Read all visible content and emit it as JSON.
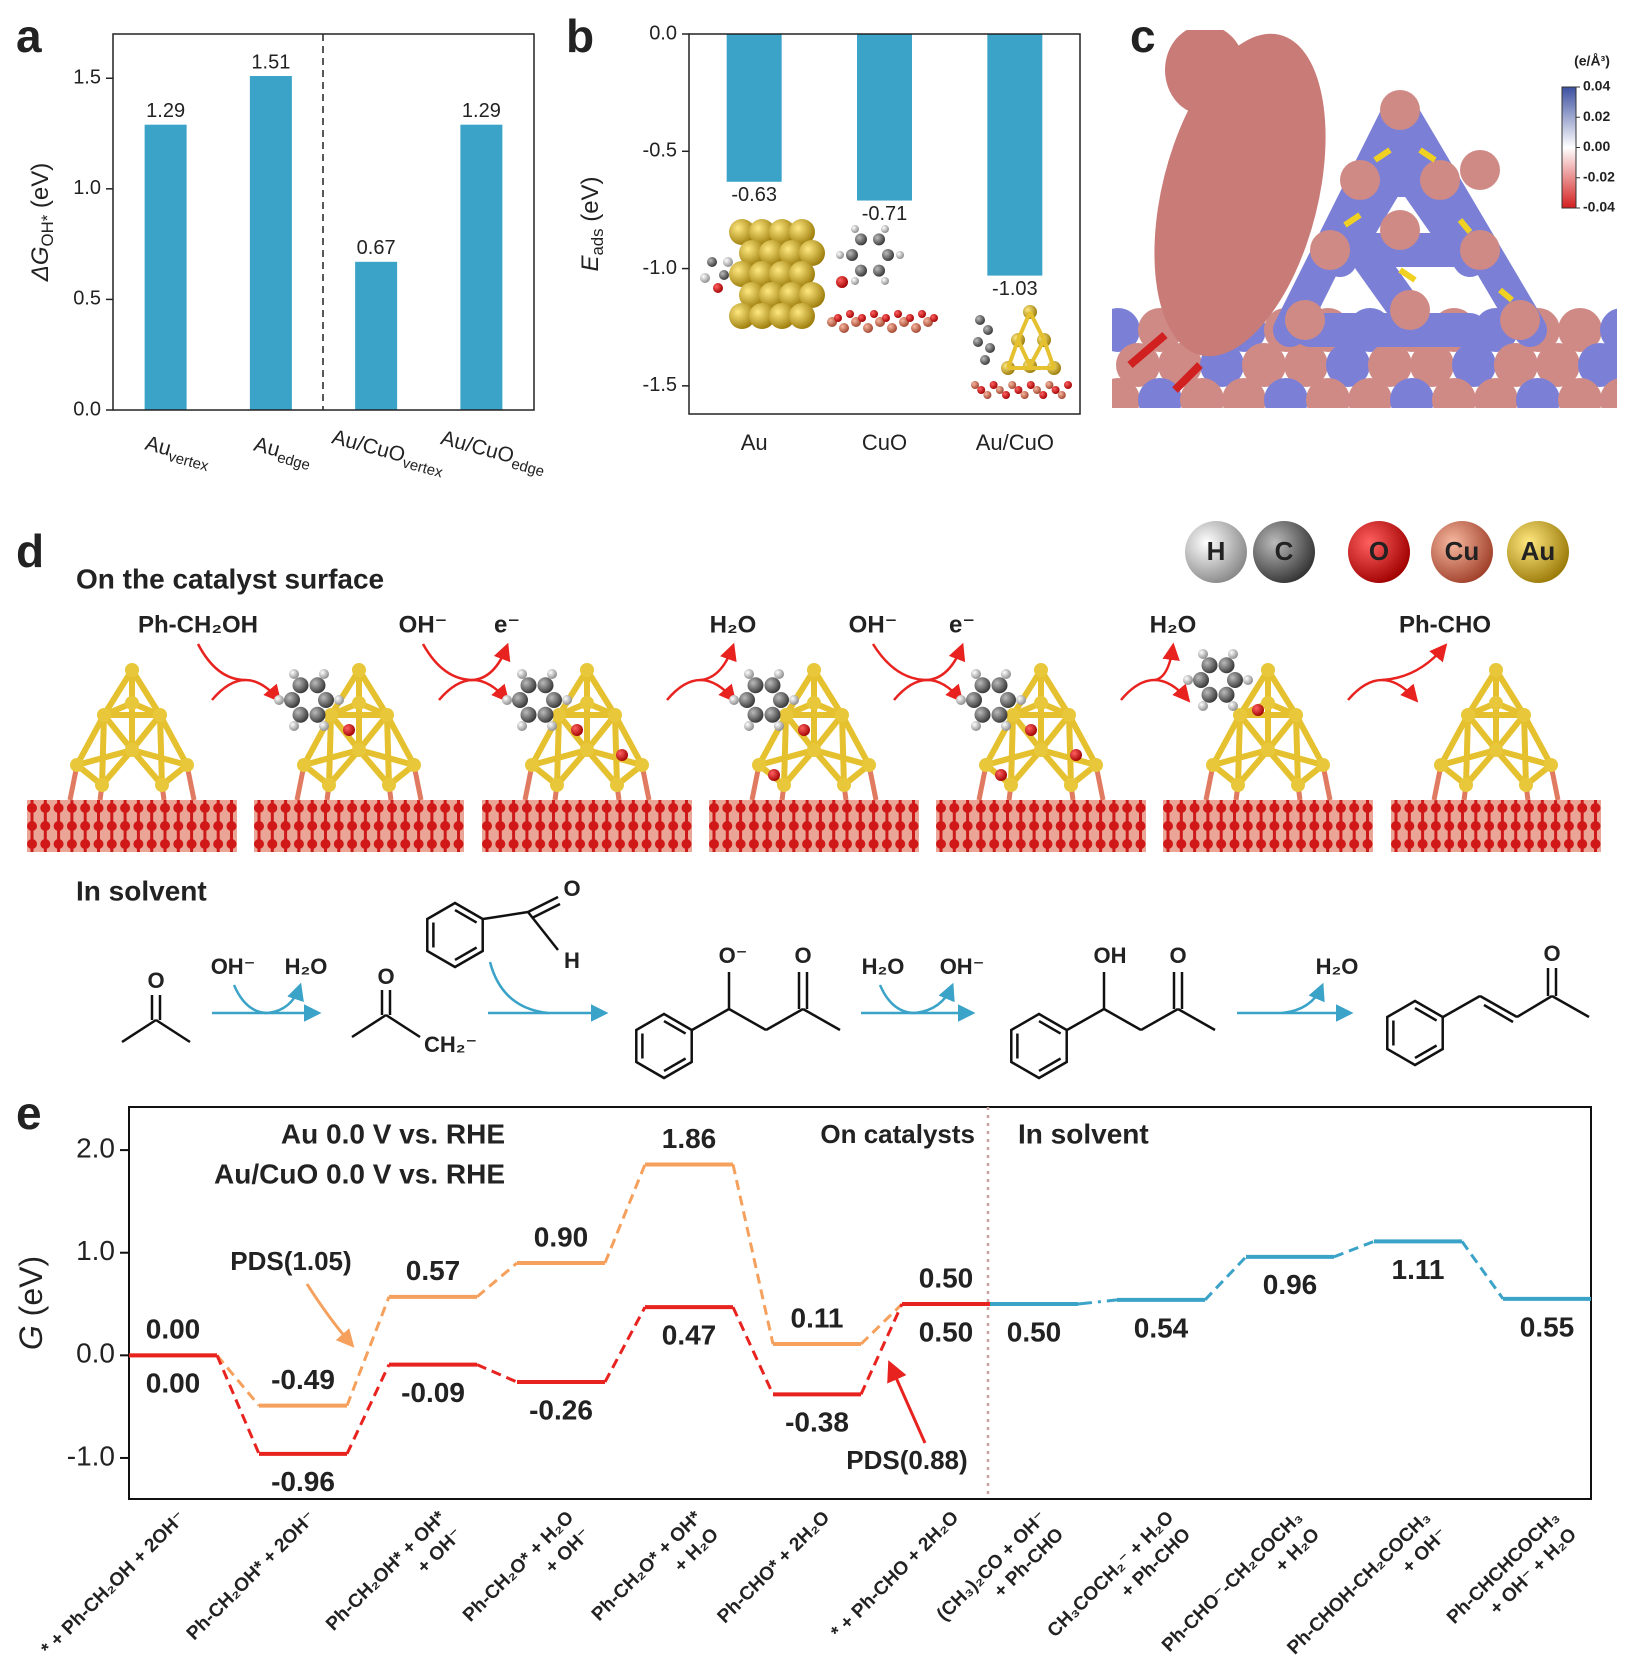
{
  "chart_data": [
    {
      "label": "a",
      "type": "bar",
      "ylabel": [
        "ΔG",
        "OH*",
        " (eV)"
      ],
      "categories": [
        [
          "Au",
          "vertex"
        ],
        [
          "Au",
          "edge"
        ],
        [
          "Au/CuO",
          "vertex"
        ],
        [
          "Au/CuO",
          "edge"
        ]
      ],
      "values": [
        1.29,
        1.51,
        0.67,
        1.29
      ],
      "color": "#3ba3c8",
      "ylim": [
        0,
        1.7
      ],
      "yticks": [
        {
          "value": 0,
          "label": "0.0"
        },
        0.5,
        {
          "value": 1,
          "label": "1.0"
        },
        1.5
      ]
    },
    {
      "label": "b",
      "type": "bar",
      "ylabel": [
        "E",
        "ads",
        " (eV)"
      ],
      "categories": [
        "Au",
        "CuO",
        "Au/CuO"
      ],
      "values": [
        -0.63,
        -0.71,
        -1.03
      ],
      "color": "#3ba3c8",
      "ylim": [
        -1.62,
        0
      ],
      "yticks": [
        {
          "value": 0,
          "label": "0.0"
        },
        -0.5,
        {
          "value": -1,
          "label": "-1.0"
        },
        -1.5
      ]
    },
    {
      "label": "e",
      "type": "step",
      "ylabel": [
        "G",
        " (eV)"
      ],
      "categories": [
        [
          "* + Ph-CH₂OH + 2OH⁻"
        ],
        [
          "Ph-CH₂OH* + 2OH⁻"
        ],
        [
          "Ph-CH₂OH* + OH*",
          "+ OH⁻"
        ],
        [
          "Ph-CH₂O* + H₂O",
          "+ OH⁻"
        ],
        [
          "Ph-CH₂O* + OH*",
          "+ H₂O"
        ],
        [
          "Ph-CHO* + 2H₂O"
        ],
        [
          "* + Ph-CHO + 2H₂O"
        ],
        [
          "(CH₃)₂CO + OH⁻",
          "+ Ph-CHO"
        ],
        [
          "CH₃COCH₂⁻ + H₂O",
          "+ Ph-CHO"
        ],
        [
          "Ph-CHO⁻-CH₂COCH₃",
          "+ H₂O"
        ],
        [
          "Ph-CHOH-CH₂COCH₃",
          "+ OH⁻"
        ],
        [
          "Ph-CHCHCOCH₃",
          "+ OH⁻ + H₂O"
        ]
      ],
      "series": [
        {
          "name": "Au 0.0 V vs. RHE",
          "color": "#f5a05c",
          "values": [
            0,
            -0.49,
            0.57,
            0.9,
            1.86,
            0.11,
            0.5,
            null,
            null,
            null,
            null,
            null
          ],
          "value_labels": [
            "0.00",
            "-0.49",
            "0.57",
            "0.90",
            "1.86",
            "0.11",
            "0.50",
            null,
            null,
            null,
            null,
            null
          ]
        },
        {
          "name": "Au/CuO 0.0 V vs. RHE",
          "color": "#e8231f",
          "values": [
            0,
            -0.96,
            -0.09,
            -0.26,
            0.47,
            -0.38,
            0.5,
            null,
            null,
            null,
            null,
            null
          ],
          "value_labels": [
            "0.00",
            "-0.96",
            "-0.09",
            "-0.26",
            "0.47",
            "-0.38",
            "0.50",
            null,
            null,
            null,
            null,
            null
          ]
        },
        {
          "name": "In solvent",
          "color": "#3ba3c8",
          "values": [
            null,
            null,
            null,
            null,
            null,
            null,
            null,
            0.5,
            0.54,
            0.96,
            1.11,
            0.55
          ],
          "value_labels": [
            null,
            null,
            null,
            null,
            null,
            null,
            null,
            "0.50",
            "0.54",
            "0.96",
            "1.11",
            "0.55"
          ]
        }
      ],
      "ylim": [
        -1.4,
        2.42
      ],
      "yticks": [
        {
          "value": -1,
          "label": "-1.0"
        },
        {
          "value": 0,
          "label": "0.0"
        },
        {
          "value": 1,
          "label": "1.0"
        },
        {
          "value": 2,
          "label": "2.0"
        }
      ],
      "annotations": [
        {
          "text": "On catalysts",
          "color": "#e8231f"
        },
        {
          "text": "PDS(1.05)",
          "color": "#f5a05c"
        },
        {
          "text": "PDS(0.88)",
          "color": "#e8231f"
        }
      ]
    }
  ],
  "panel_c": {
    "label": "c",
    "colorbar_unit": "(e/Å³)",
    "colorbar_lim": [
      -0.04,
      0.04
    ],
    "colorbar_ticks": [
      {
        "value": 0.04,
        "label": "0.04"
      },
      {
        "value": 0.02,
        "label": "0.02"
      },
      {
        "value": 0,
        "label": "0.00"
      },
      {
        "value": -0.02,
        "label": "-0.02"
      },
      {
        "value": -0.04,
        "label": "-0.04"
      }
    ]
  },
  "panel_d": {
    "label": "d",
    "surface_title": "On the catalyst surface",
    "species": [
      "Ph-CH₂OH",
      "OH⁻",
      "e⁻",
      "H₂O",
      "OH⁻",
      "e⁻",
      "H₂O",
      "Ph-CHO"
    ],
    "atoms": [
      "H",
      "C",
      "O",
      "Cu",
      "Au"
    ],
    "solvent_title": "In solvent",
    "solvent_species": [
      "OH⁻",
      "H₂O",
      "H₂O",
      "OH⁻",
      "H₂O"
    ],
    "atom_labels": [
      "O",
      "O",
      "CH₂⁻",
      "O",
      "H",
      "O⁻",
      "O",
      "OH",
      "O",
      "O"
    ]
  }
}
